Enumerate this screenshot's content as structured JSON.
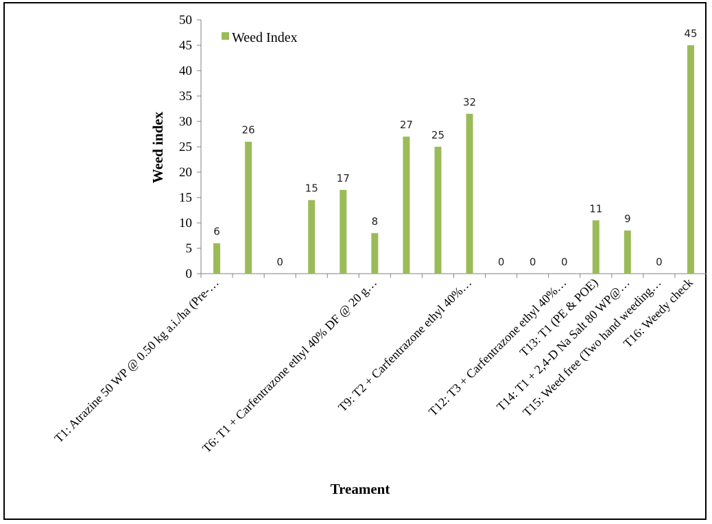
{
  "chart_data": {
    "type": "bar",
    "title": "",
    "xlabel": "Treament",
    "ylabel": "Weed index",
    "ylim": [
      0,
      50
    ],
    "yticks": [
      "0",
      "5",
      "10",
      "15",
      "20",
      "25",
      "30",
      "35",
      "40",
      "45",
      "50"
    ],
    "grid": false,
    "legend_position": "top-left",
    "bar_color": "#9bbb59",
    "category_labels": [
      "T1: Atrazine 50 WP @ 0.50 kg a.i./ha (Pre-…",
      "",
      "",
      "",
      "",
      "T6: T1 + Carfentrazone ethyl 40% DF @ 20 g…",
      "",
      "",
      "T9: T2 + Carfentrazone ethyl 40%…",
      "",
      "",
      "T12: T3 + Carfentrazone ethyl 40%…",
      "T13: T1 (PE & POE)",
      "T14: T1 + 2,4-D Na Salt 80 WP@…",
      "T15: Weed free (Two hand weeding…",
      "T16: Weedy check"
    ],
    "series": [
      {
        "name": "Weed Index",
        "values": [
          6,
          26,
          0,
          14.5,
          16.5,
          8,
          27,
          25,
          31.5,
          0,
          0,
          0,
          10.5,
          8.5,
          0,
          45
        ],
        "data_labels": [
          "6",
          "26",
          "0",
          "15",
          "17",
          "8",
          "27",
          "25",
          "32",
          "0",
          "0",
          "0",
          "11",
          "9",
          "0",
          "45"
        ]
      }
    ]
  }
}
